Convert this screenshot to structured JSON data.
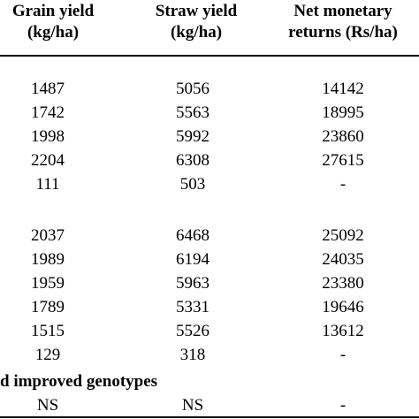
{
  "table": {
    "headers": [
      [
        "Grain yield",
        "(kg/ha)"
      ],
      [
        "Straw yield",
        "(kg/ha)"
      ],
      [
        "Net monetary",
        "returns (Rs/ha)"
      ]
    ],
    "group1_rows": [
      [
        "1487",
        "5056",
        "14142"
      ],
      [
        "1742",
        "5563",
        "18995"
      ],
      [
        "1998",
        "5992",
        "23860"
      ],
      [
        "2204",
        "6308",
        "27615"
      ],
      [
        "111",
        "503",
        "-"
      ]
    ],
    "group2_rows": [
      [
        "2037",
        "6468",
        "25092"
      ],
      [
        "1989",
        "6194",
        "24035"
      ],
      [
        "1959",
        "5963",
        "23380"
      ],
      [
        "1789",
        "5331",
        "19646"
      ],
      [
        "1515",
        "5526",
        "13612"
      ],
      [
        "129",
        "318",
        "-"
      ]
    ],
    "interaction_label": "d improved genotypes",
    "interaction_row": [
      "NS",
      "NS",
      "-"
    ]
  }
}
